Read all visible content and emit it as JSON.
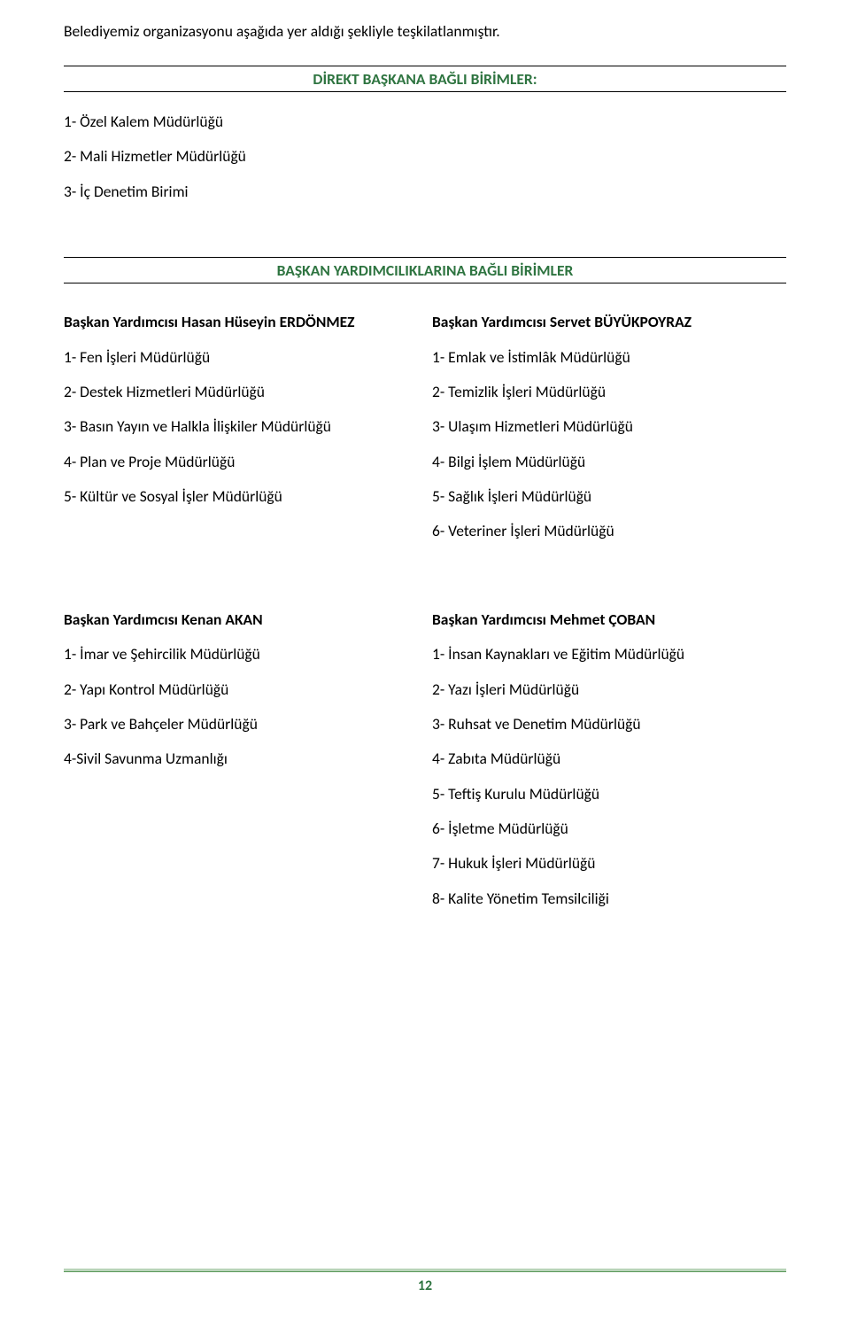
{
  "intro": "Belediyemiz organizasyonu aşağıda yer aldığı şekliyle teşkilatlanmıştır.",
  "headings": {
    "h1": "DİREKT BAŞKANA BAĞLI BİRİMLER:",
    "h2": "BAŞKAN YARDIMCILIKLARINA BAĞLI BİRİMLER"
  },
  "direct": {
    "items": [
      "1- Özel Kalem Müdürlüğü",
      "2- Mali Hizmetler Müdürlüğü",
      "3- İç Denetim Birimi"
    ]
  },
  "groupA": {
    "left": {
      "head": "Başkan Yardımcısı Hasan Hüseyin ERDÖNMEZ",
      "items": [
        "1- Fen İşleri Müdürlüğü",
        "2- Destek Hizmetleri Müdürlüğü",
        "3- Basın Yayın ve Halkla İlişkiler Müdürlüğü",
        "4- Plan ve Proje Müdürlüğü",
        "5- Kültür ve Sosyal İşler Müdürlüğü"
      ]
    },
    "right": {
      "head": "Başkan Yardımcısı Servet BÜYÜKPOYRAZ",
      "items": [
        "1- Emlak ve İstimlâk Müdürlüğü",
        "2- Temizlik İşleri Müdürlüğü",
        "3- Ulaşım Hizmetleri Müdürlüğü",
        "4- Bilgi İşlem Müdürlüğü",
        "5- Sağlık İşleri Müdürlüğü",
        "6- Veteriner İşleri Müdürlüğü"
      ]
    }
  },
  "groupB": {
    "left": {
      "head": "Başkan Yardımcısı Kenan AKAN",
      "items": [
        "1- İmar ve Şehircilik Müdürlüğü",
        "2- Yapı Kontrol Müdürlüğü",
        "3- Park ve Bahçeler Müdürlüğü",
        "4-Sivil Savunma Uzmanlığı"
      ]
    },
    "right": {
      "head": "Başkan Yardımcısı Mehmet ÇOBAN",
      "items": [
        "1- İnsan Kaynakları ve Eğitim Müdürlüğü",
        "2- Yazı İşleri Müdürlüğü",
        "3- Ruhsat ve Denetim Müdürlüğü",
        "4- Zabıta Müdürlüğü",
        "5- Teftiş Kurulu Müdürlüğü",
        "6- İşletme Müdürlüğü",
        "7- Hukuk İşleri Müdürlüğü",
        "8- Kalite Yönetim Temsilciliği"
      ]
    }
  },
  "page_number": "12",
  "colors": {
    "heading_color": "#2e7440",
    "text_color": "#000000",
    "line_top": "#a3c7a3",
    "line_bottom": "#5c9a5c"
  }
}
